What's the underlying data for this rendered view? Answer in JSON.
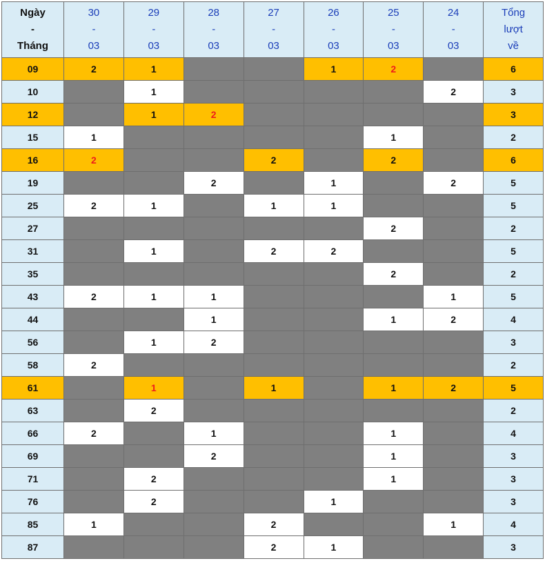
{
  "header": {
    "first": [
      "Ngày",
      "-",
      "Tháng"
    ],
    "dates": [
      [
        "30",
        "-",
        "03"
      ],
      [
        "29",
        "-",
        "03"
      ],
      [
        "28",
        "-",
        "03"
      ],
      [
        "27",
        "-",
        "03"
      ],
      [
        "26",
        "-",
        "03"
      ],
      [
        "25",
        "-",
        "03"
      ],
      [
        "24",
        "-",
        "03"
      ]
    ],
    "total": [
      "Tổng",
      "lượt",
      "về"
    ]
  },
  "colors": {
    "highlight": "#ffbf00",
    "empty": "#808080",
    "label_bg": "#d9ecf6",
    "red_text": "#ee1c1c",
    "header_text": "#1a3db8"
  },
  "rows": [
    {
      "num": "09",
      "highlight": true,
      "cells": [
        "2",
        "1",
        "",
        "",
        "1",
        "2",
        ""
      ],
      "red": [
        5
      ],
      "total": "6"
    },
    {
      "num": "10",
      "highlight": false,
      "cells": [
        "",
        "1",
        "",
        "",
        "",
        "",
        "2"
      ],
      "red": [],
      "total": "3"
    },
    {
      "num": "12",
      "highlight": true,
      "cells": [
        "",
        "1",
        "2",
        "",
        "",
        "",
        ""
      ],
      "red": [
        2
      ],
      "total": "3"
    },
    {
      "num": "15",
      "highlight": false,
      "cells": [
        "1",
        "",
        "",
        "",
        "",
        "1",
        ""
      ],
      "red": [],
      "total": "2"
    },
    {
      "num": "16",
      "highlight": true,
      "cells": [
        "2",
        "",
        "",
        "2",
        "",
        "2",
        ""
      ],
      "red": [
        0
      ],
      "total": "6"
    },
    {
      "num": "19",
      "highlight": false,
      "cells": [
        "",
        "",
        "2",
        "",
        "1",
        "",
        "2"
      ],
      "red": [],
      "total": "5"
    },
    {
      "num": "25",
      "highlight": false,
      "cells": [
        "2",
        "1",
        "",
        "1",
        "1",
        "",
        ""
      ],
      "red": [],
      "total": "5"
    },
    {
      "num": "27",
      "highlight": false,
      "cells": [
        "",
        "",
        "",
        "",
        "",
        "2",
        ""
      ],
      "red": [],
      "total": "2"
    },
    {
      "num": "31",
      "highlight": false,
      "cells": [
        "",
        "1",
        "",
        "2",
        "2",
        "",
        ""
      ],
      "red": [],
      "total": "5"
    },
    {
      "num": "35",
      "highlight": false,
      "cells": [
        "",
        "",
        "",
        "",
        "",
        "2",
        ""
      ],
      "red": [],
      "total": "2"
    },
    {
      "num": "43",
      "highlight": false,
      "cells": [
        "2",
        "1",
        "1",
        "",
        "",
        "",
        "1"
      ],
      "red": [],
      "total": "5"
    },
    {
      "num": "44",
      "highlight": false,
      "cells": [
        "",
        "",
        "1",
        "",
        "",
        "1",
        "2"
      ],
      "red": [],
      "total": "4"
    },
    {
      "num": "56",
      "highlight": false,
      "cells": [
        "",
        "1",
        "2",
        "",
        "",
        "",
        ""
      ],
      "red": [],
      "total": "3"
    },
    {
      "num": "58",
      "highlight": false,
      "cells": [
        "2",
        "",
        "",
        "",
        "",
        "",
        ""
      ],
      "red": [],
      "total": "2"
    },
    {
      "num": "61",
      "highlight": true,
      "cells": [
        "",
        "1",
        "",
        "1",
        "",
        "1",
        "2"
      ],
      "red": [
        1
      ],
      "total": "5"
    },
    {
      "num": "63",
      "highlight": false,
      "cells": [
        "",
        "2",
        "",
        "",
        "",
        "",
        ""
      ],
      "red": [],
      "total": "2"
    },
    {
      "num": "66",
      "highlight": false,
      "cells": [
        "2",
        "",
        "1",
        "",
        "",
        "1",
        ""
      ],
      "red": [],
      "total": "4"
    },
    {
      "num": "69",
      "highlight": false,
      "cells": [
        "",
        "",
        "2",
        "",
        "",
        "1",
        ""
      ],
      "red": [],
      "total": "3"
    },
    {
      "num": "71",
      "highlight": false,
      "cells": [
        "",
        "2",
        "",
        "",
        "",
        "1",
        ""
      ],
      "red": [],
      "total": "3"
    },
    {
      "num": "76",
      "highlight": false,
      "cells": [
        "",
        "2",
        "",
        "",
        "1",
        "",
        ""
      ],
      "red": [],
      "total": "3"
    },
    {
      "num": "85",
      "highlight": false,
      "cells": [
        "1",
        "",
        "",
        "2",
        "",
        "",
        "1"
      ],
      "red": [],
      "total": "4"
    },
    {
      "num": "87",
      "highlight": false,
      "cells": [
        "",
        "",
        "",
        "2",
        "1",
        "",
        ""
      ],
      "red": [],
      "total": "3"
    }
  ]
}
